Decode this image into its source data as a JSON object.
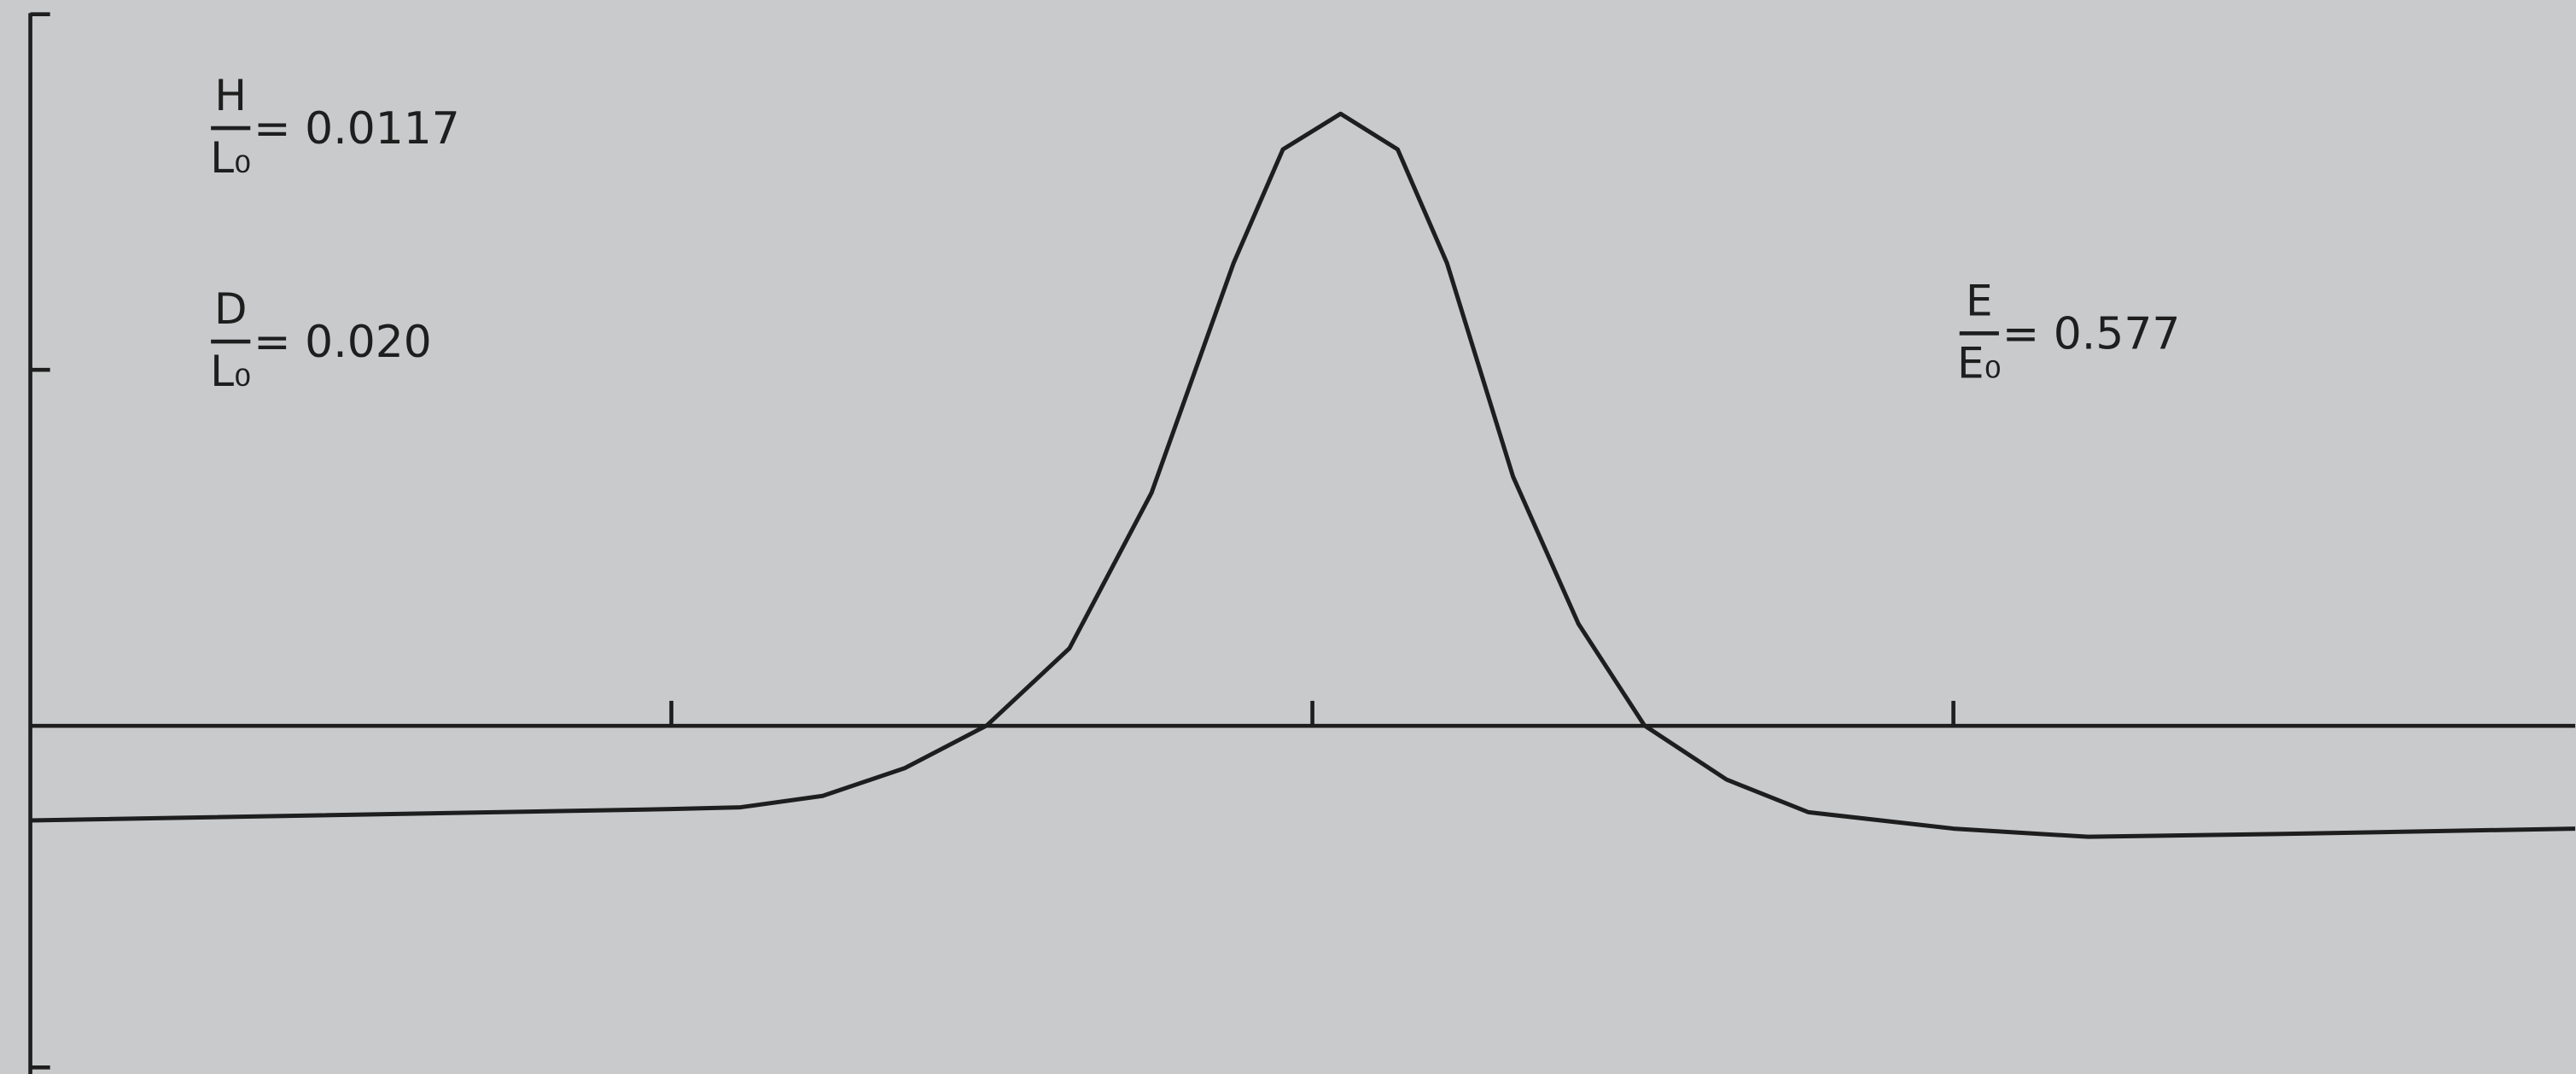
{
  "chart_data": {
    "type": "line",
    "x": [
      0,
      1,
      1.108,
      1.236,
      1.364,
      1.492,
      1.621,
      1.749,
      1.877,
      1.954,
      2.044,
      2.133,
      2.21,
      2.313,
      2.415,
      2.518,
      2.646,
      2.774,
      3,
      3.21,
      3.544,
      3.97
    ],
    "series": [
      {
        "color": "#1e1e1e",
        "values": [
          -0.267,
          -0.235,
          -0.23,
          -0.198,
          -0.12,
          0,
          0.217,
          0.654,
          1.3,
          1.62,
          1.72,
          1.62,
          1.3,
          0.7,
          0.286,
          0,
          -0.152,
          -0.244,
          -0.29,
          -0.313,
          -0.304,
          -0.29
        ]
      }
    ],
    "xlim": [
      0,
      3.97
    ],
    "ylim": [
      -0.98,
      2.04
    ],
    "xticks": [
      1,
      2,
      3
    ],
    "yticks": [
      1,
      2
    ],
    "annotations": [
      {
        "numerator": "H",
        "denominator": "L₀",
        "text": "= 0.0117"
      },
      {
        "numerator": "D",
        "denominator": "L₀",
        "text": "= 0.020"
      },
      {
        "numerator": "E",
        "denominator": "E₀",
        "text": "= 0.577"
      }
    ]
  }
}
